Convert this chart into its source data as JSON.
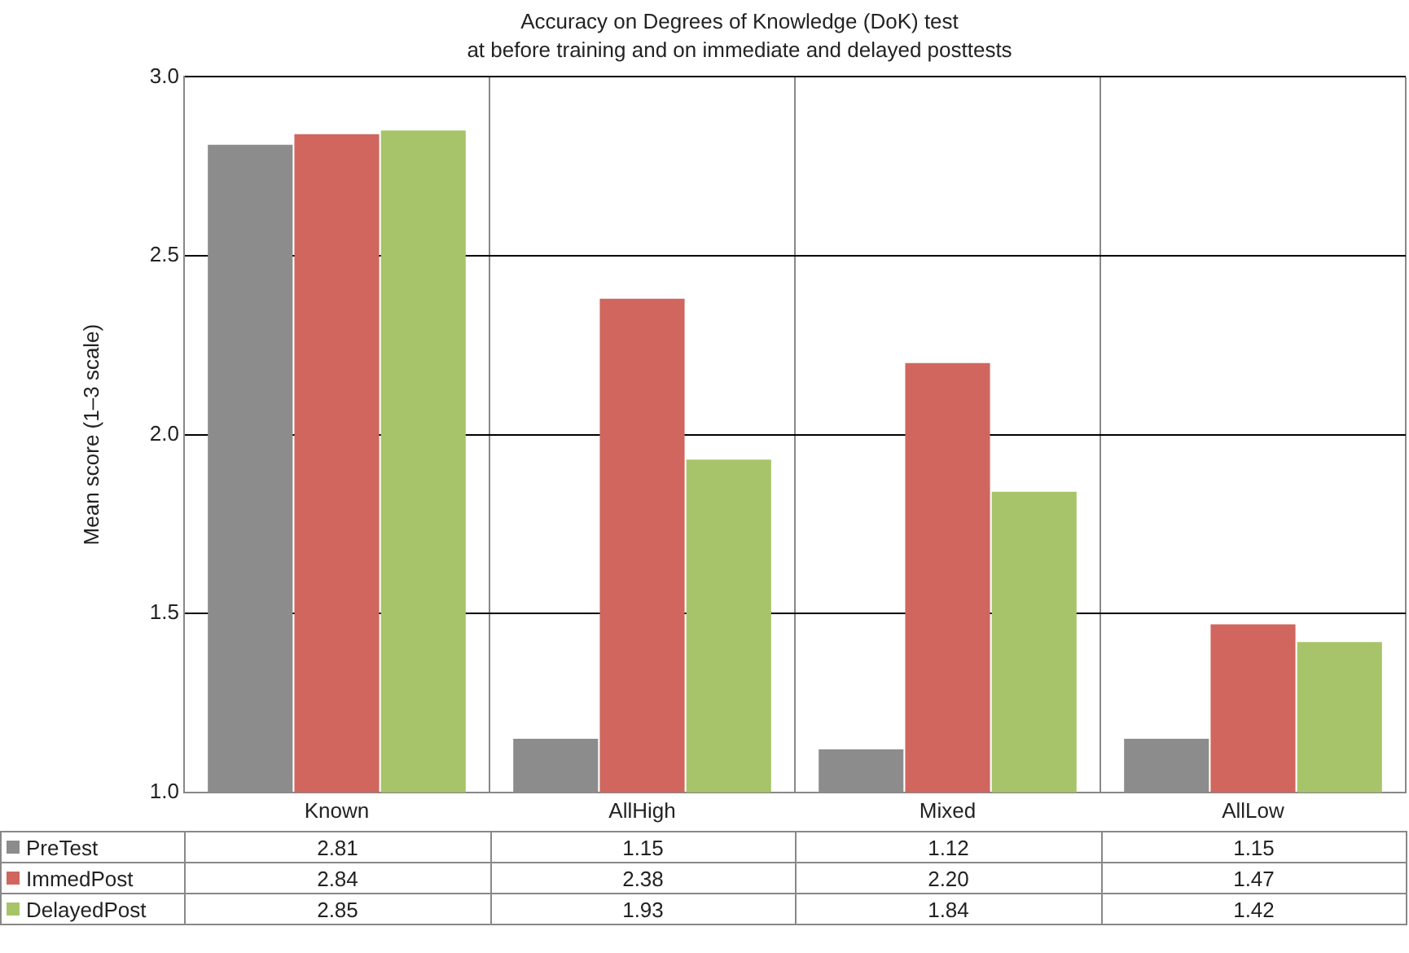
{
  "chart_data": {
    "type": "bar",
    "title": "Accuracy on Degrees of Knowledge (DoK) test",
    "subtitle": "at before training and on immediate and delayed posttests",
    "ylabel": "Mean score (1–3 scale)",
    "categories": [
      "Known",
      "AllHigh",
      "Mixed",
      "AllLow"
    ],
    "series": [
      {
        "name": "PreTest",
        "color": "#8c8c8c",
        "values": [
          2.81,
          1.15,
          1.12,
          1.15
        ],
        "value_labels": [
          "2.81",
          "1.15",
          "1.12",
          "1.15"
        ]
      },
      {
        "name": "ImmedPost",
        "color": "#d0665e",
        "values": [
          2.84,
          2.38,
          2.2,
          1.47
        ],
        "value_labels": [
          "2.84",
          "2.38",
          "2.20",
          "1.47"
        ]
      },
      {
        "name": "DelayedPost",
        "color": "#a8c46a",
        "values": [
          2.85,
          1.93,
          1.84,
          1.42
        ],
        "value_labels": [
          "2.85",
          "1.93",
          "1.84",
          "1.42"
        ]
      }
    ],
    "ylim": [
      1,
      3
    ],
    "yticks": [
      {
        "value": 1,
        "label": "1.0"
      },
      {
        "value": 1.5,
        "label": "1.5"
      },
      {
        "value": 2,
        "label": "2.0"
      },
      {
        "value": 2.5,
        "label": "2.5"
      },
      {
        "value": 3,
        "label": "3.0"
      }
    ],
    "grid": "y",
    "legend": "bottom left"
  }
}
